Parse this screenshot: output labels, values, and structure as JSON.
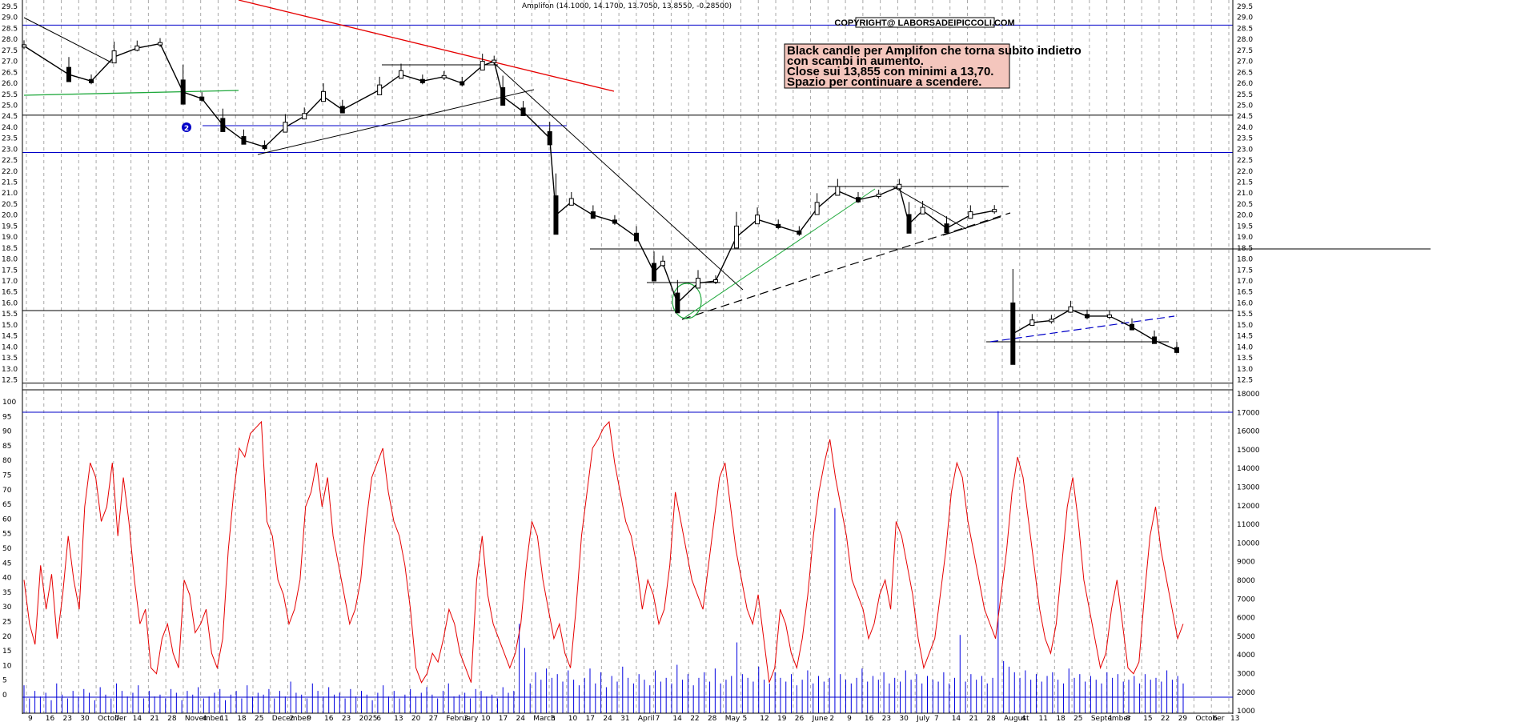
{
  "title": "Amplifon (14.1000, 14.1700, 13.7050, 13.8550, -0.28500)",
  "copyright": "COPYRIGHT@ LABORSADEIPICCOLI.COM",
  "annotation": {
    "lines": [
      "Black candle per Amplifon che torna subito indietro",
      "con scambi in aumento.",
      "Close sui 13,855 con minimi a 13,70.",
      "Spazio per continuare a scendere."
    ],
    "bg_color": "#f4c6bd"
  },
  "marker_label": "2",
  "price_ticks": [
    "29.5",
    "29.0",
    "28.5",
    "28.0",
    "27.5",
    "27.0",
    "26.5",
    "26.0",
    "25.5",
    "25.0",
    "24.5",
    "24.0",
    "23.5",
    "23.0",
    "22.5",
    "22.0",
    "21.5",
    "21.0",
    "20.5",
    "20.0",
    "19.5",
    "19.0",
    "18.5",
    "18.0",
    "17.5",
    "17.0",
    "16.5",
    "16.0",
    "15.5",
    "15.0",
    "14.5",
    "14.0",
    "13.5",
    "13.0",
    "12.5"
  ],
  "osc_ticks": [
    "100",
    "95",
    "90",
    "85",
    "80",
    "75",
    "70",
    "65",
    "60",
    "55",
    "50",
    "45",
    "40",
    "35",
    "30",
    "25",
    "20",
    "15",
    "10",
    "5",
    "0"
  ],
  "volume_ticks": [
    "18000",
    "17000",
    "16000",
    "15000",
    "14000",
    "13000",
    "12000",
    "11000",
    "10000",
    "9000",
    "8000",
    "7000",
    "6000",
    "5000",
    "4000",
    "3000",
    "2000",
    "1000"
  ],
  "date_labels": [
    "9",
    "16",
    "23",
    "30",
    "October",
    "7",
    "14",
    "21",
    "28",
    "November",
    "4",
    "11",
    "18",
    "25",
    "December",
    "2",
    "9",
    "16",
    "23",
    "2025",
    "6",
    "13",
    "20",
    "27",
    "February",
    "3",
    "10",
    "17",
    "24",
    "March",
    "3",
    "10",
    "17",
    "24",
    "31",
    "April",
    "7",
    "14",
    "22",
    "28",
    "May",
    "5",
    "12",
    "19",
    "26",
    "June",
    "2",
    "9",
    "16",
    "23",
    "30",
    "July",
    "7",
    "14",
    "21",
    "28",
    "August",
    "4",
    "11",
    "18",
    "25",
    "September",
    "1",
    "8",
    "15",
    "22",
    "29",
    "October",
    "6",
    "13"
  ],
  "colors": {
    "grid": "#a8a8a8",
    "candle_up": "#ffffff",
    "candle_down": "#000000",
    "support": "#000000",
    "level_blue": "#0000c8",
    "trend_red": "#e60000",
    "trend_green": "#1fa83c",
    "rsi": "#e60000",
    "volume": "#0000e0"
  },
  "chart_data": [
    {
      "type": "candlestick",
      "title": "Amplifon (14.1000, 14.1700, 13.7050, 13.8550, -0.28500)",
      "ylim": [
        12.3,
        29.7
      ],
      "last_bar": {
        "open": 14.1,
        "high": 14.17,
        "low": 13.705,
        "close": 13.855,
        "change": -0.285
      },
      "support_resistance_levels": [
        28.65,
        24.55,
        22.85,
        21.45,
        20.1,
        18.7,
        15.65,
        14.45,
        12.35
      ],
      "path_points": [
        {
          "d": "9 Sep",
          "c": 27.7
        },
        {
          "d": "23 Sep",
          "c": 26.4
        },
        {
          "d": "30 Sep",
          "c": 26.1
        },
        {
          "d": "7 Oct",
          "c": 27.2
        },
        {
          "d": "14 Oct",
          "c": 27.6
        },
        {
          "d": "21 Oct",
          "c": 27.8
        },
        {
          "d": "28 Oct",
          "c": 25.6
        },
        {
          "d": "4 Nov",
          "c": 25.3
        },
        {
          "d": "11 Nov",
          "c": 24.1
        },
        {
          "d": "18 Nov",
          "c": 23.4
        },
        {
          "d": "25 Nov",
          "c": 23.1
        },
        {
          "d": "2 Dec",
          "c": 24.0
        },
        {
          "d": "9 Dec",
          "c": 24.5
        },
        {
          "d": "16 Dec",
          "c": 25.4
        },
        {
          "d": "23 Dec",
          "c": 24.8
        },
        {
          "d": "6 Jan",
          "c": 25.7
        },
        {
          "d": "13 Jan",
          "c": 26.4
        },
        {
          "d": "20 Jan",
          "c": 26.1
        },
        {
          "d": "27 Jan",
          "c": 26.3
        },
        {
          "d": "3 Feb",
          "c": 26.0
        },
        {
          "d": "10 Feb",
          "c": 26.8
        },
        {
          "d": "14 Feb",
          "c": 27.0
        },
        {
          "d": "17 Feb",
          "c": 25.4
        },
        {
          "d": "24 Feb",
          "c": 24.7
        },
        {
          "d": "3 Mar",
          "c": 23.5
        },
        {
          "d": "5 Mar",
          "c": 20.0
        },
        {
          "d": "10 Mar",
          "c": 20.6
        },
        {
          "d": "17 Mar",
          "c": 20.0
        },
        {
          "d": "24 Mar",
          "c": 19.7
        },
        {
          "d": "31 Mar",
          "c": 19.0
        },
        {
          "d": "7 Apr",
          "c": 17.4
        },
        {
          "d": "10 Apr",
          "c": 17.8
        },
        {
          "d": "15 Apr",
          "c": 16.0
        },
        {
          "d": "22 Apr",
          "c": 16.9
        },
        {
          "d": "28 Apr",
          "c": 17.0
        },
        {
          "d": "5 May",
          "c": 19.0
        },
        {
          "d": "12 May",
          "c": 19.8
        },
        {
          "d": "19 May",
          "c": 19.5
        },
        {
          "d": "26 May",
          "c": 19.2
        },
        {
          "d": "2 Jun",
          "c": 20.3
        },
        {
          "d": "9 Jun",
          "c": 21.1
        },
        {
          "d": "16 Jun",
          "c": 20.7
        },
        {
          "d": "23 Jun",
          "c": 20.9
        },
        {
          "d": "30 Jun",
          "c": 21.3
        },
        {
          "d": "3 Jul",
          "c": 19.6
        },
        {
          "d": "7 Jul",
          "c": 20.2
        },
        {
          "d": "14 Jul",
          "c": 19.4
        },
        {
          "d": "21 Jul",
          "c": 20.0
        },
        {
          "d": "28 Jul",
          "c": 20.2
        },
        {
          "d": "4 Aug",
          "c": 14.6
        },
        {
          "d": "11 Aug",
          "c": 15.1
        },
        {
          "d": "18 Aug",
          "c": 15.2
        },
        {
          "d": "25 Aug",
          "c": 15.7
        },
        {
          "d": "1 Sep",
          "c": 15.4
        },
        {
          "d": "8 Sep",
          "c": 15.4
        },
        {
          "d": "15 Sep",
          "c": 14.9
        },
        {
          "d": "22 Sep",
          "c": 14.3
        },
        {
          "d": "29 Sep",
          "c": 13.855
        }
      ]
    },
    {
      "type": "line",
      "series": [
        {
          "values": [
            40,
            25,
            18,
            45,
            30,
            42,
            20,
            35,
            55,
            40,
            30,
            65,
            80,
            75,
            60,
            65,
            80,
            55,
            75,
            60,
            40,
            25,
            30,
            10,
            8,
            20,
            25,
            15,
            10,
            40,
            35,
            22,
            25,
            30,
            15,
            10,
            20,
            50,
            70,
            85,
            82,
            90,
            92,
            94,
            60,
            55,
            40,
            35,
            25,
            30,
            40,
            65,
            70,
            80,
            65,
            75,
            55,
            45,
            35,
            25,
            30,
            40,
            60,
            75,
            80,
            85,
            70,
            60,
            55,
            45,
            30,
            10,
            5,
            8,
            15,
            12,
            20,
            30,
            25,
            15,
            10,
            5,
            40,
            55,
            35,
            25,
            20,
            15,
            10,
            15,
            25,
            45,
            60,
            55,
            40,
            30,
            20,
            25,
            15,
            10,
            30,
            55,
            70,
            85,
            88,
            92,
            94,
            80,
            70,
            60,
            55,
            45,
            30,
            40,
            35,
            25,
            30,
            45,
            70,
            60,
            50,
            40,
            35,
            30,
            45,
            60,
            75,
            80,
            65,
            50,
            40,
            30,
            25,
            35,
            20,
            5,
            10,
            30,
            25,
            15,
            10,
            20,
            35,
            55,
            70,
            80,
            88,
            75,
            65,
            55,
            40,
            35,
            30,
            20,
            25,
            35,
            40,
            30,
            60,
            55,
            45,
            35,
            20,
            10,
            15,
            20,
            35,
            50,
            70,
            80,
            75,
            60,
            50,
            40,
            30,
            25,
            20,
            35,
            50,
            70,
            82,
            75,
            60,
            45,
            30,
            20,
            15,
            25,
            45,
            65,
            75,
            60,
            40,
            30,
            20,
            10,
            15,
            30,
            40,
            25,
            10,
            8,
            12,
            35,
            55,
            65,
            50,
            40,
            30,
            20,
            25
          ]
        }
      ],
      "ylim": [
        0,
        100
      ],
      "reference_lines": [
        95,
        5
      ]
    },
    {
      "type": "bar",
      "series": [
        {
          "values": [
            2500,
            1800,
            2200,
            1900,
            2100,
            1700,
            2600,
            2000,
            1800,
            2200,
            1900,
            2300,
            2100,
            1700,
            2400,
            2000,
            1800,
            2600,
            2200,
            1900,
            2100,
            2500,
            1800,
            2200,
            1900,
            2000,
            1800,
            2300,
            2100,
            1700,
            2200,
            2000,
            2400,
            1800,
            1900,
            2100,
            2300,
            1700,
            2000,
            2200,
            1800,
            2500,
            1900,
            2100,
            2000,
            2300,
            1800,
            2200,
            1900,
            2700,
            2100,
            2000,
            1800,
            2600,
            2200,
            1900,
            2400,
            2000,
            2100,
            1800,
            2300,
            1900,
            2200,
            2000,
            1700,
            2100,
            2500,
            1900,
            2200,
            1800,
            2000,
            2300,
            1900,
            2100,
            2400,
            2000,
            1800,
            2200,
            2600,
            1900,
            2000,
            2100,
            1800,
            2300,
            2200,
            1900,
            2000,
            1800,
            2400,
            2100,
            2200,
            5800,
            4500,
            2600,
            3200,
            2800,
            3400,
            2900,
            3100,
            2700,
            3300,
            2800,
            2500,
            2900,
            3400,
            2600,
            3200,
            2400,
            3000,
            2700,
            3500,
            2900,
            2600,
            3100,
            2800,
            2500,
            3300,
            2700,
            2900,
            2600,
            3600,
            2800,
            3100,
            2500,
            2900,
            3200,
            2700,
            3400,
            2600,
            2800,
            3000,
            4800,
            3100,
            2900,
            2700,
            3500,
            2800,
            2600,
            3200,
            2900,
            2700,
            3100,
            2500,
            2800,
            3300,
            2600,
            3000,
            2700,
            2900,
            12000,
            3100,
            2800,
            2600,
            2900,
            3400,
            2700,
            3000,
            2800,
            3200,
            2600,
            2900,
            2700,
            3300,
            2800,
            3100,
            2600,
            3000,
            2800,
            2700,
            3200,
            2600,
            2900,
            5200,
            2700,
            3100,
            2800,
            3000,
            2600,
            2900,
            17200,
            3800,
            3500,
            3200,
            2900,
            3300,
            2800,
            3100,
            2700,
            3000,
            3200,
            2800,
            2600,
            3400,
            2900,
            3100,
            2700,
            3000,
            2800,
            2600,
            3200,
            2900,
            3100,
            2700,
            2800,
            3000,
            2600,
            3100,
            2800,
            2900,
            2700,
            3300,
            2800,
            3000,
            2600
          ]
        }
      ],
      "ylim": [
        1000,
        18000
      ]
    }
  ]
}
